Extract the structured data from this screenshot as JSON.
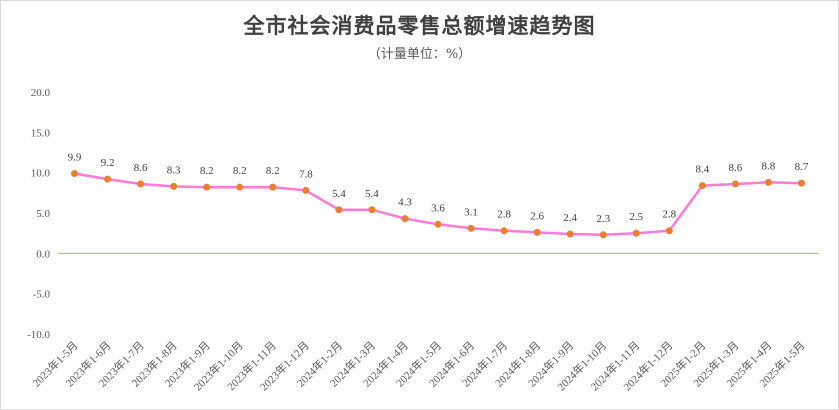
{
  "chart_data": {
    "type": "line",
    "title": "全市社会消费品零售总额增速趋势图",
    "subtitle": "（计量单位：%）",
    "ylim": [
      -10,
      20
    ],
    "yticks": [
      20,
      15,
      10,
      5,
      0,
      -5,
      -10
    ],
    "ytick_labels": [
      "20.0",
      "15.0",
      "10.0",
      "5.0",
      "0.0",
      "-5.0",
      "-10.0"
    ],
    "categories": [
      "2023年1-5月",
      "2023年1-6月",
      "2023年1-7月",
      "2023年1-8月",
      "2023年1-9月",
      "2023年1-10月",
      "2023年1-11月",
      "2023年1-12月",
      "2024年1-2月",
      "2024年1-3月",
      "2024年1-4月",
      "2024年1-5月",
      "2024年1-6月",
      "2024年1-7月",
      "2024年1-8月",
      "2024年1-9月",
      "2024年1-10月",
      "2024年1-11月",
      "2024年1-12月",
      "2025年1-2月",
      "2025年1-3月",
      "2025年1-4月",
      "2025年1-5月"
    ],
    "values": [
      9.9,
      9.2,
      8.6,
      8.3,
      8.2,
      8.2,
      8.2,
      7.8,
      5.4,
      5.4,
      4.3,
      3.6,
      3.1,
      2.8,
      2.6,
      2.4,
      2.3,
      2.5,
      2.8,
      8.4,
      8.6,
      8.8,
      8.7
    ],
    "value_labels": [
      "9.9",
      "9.2",
      "8.6",
      "8.3",
      "8.2",
      "8.2",
      "8.2",
      "7.8",
      "5.4",
      "5.4",
      "4.3",
      "3.6",
      "3.1",
      "2.8",
      "2.6",
      "2.4",
      "2.3",
      "2.5",
      "2.8",
      "8.4",
      "8.6",
      "8.8",
      "8.7"
    ],
    "line_color": "#ff7ad9",
    "marker_color": "#ed7d31",
    "zero_line_color": "#9bbb59",
    "grid": false,
    "legend": "none"
  }
}
